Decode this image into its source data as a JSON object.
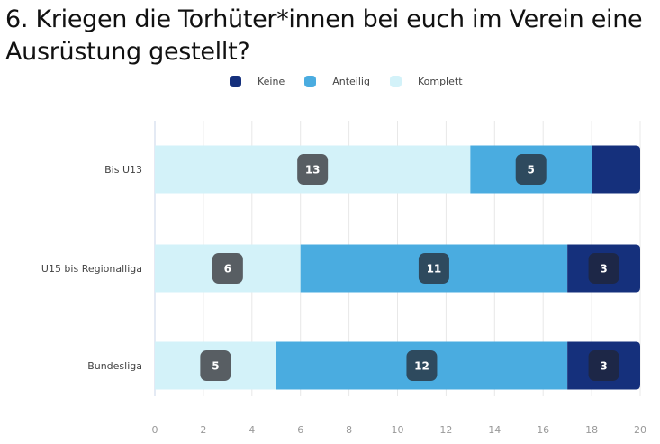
{
  "chart_data": {
    "type": "bar",
    "orientation": "horizontal",
    "stacked": true,
    "title": "6. Kriegen die Torhüter*innen bei euch im Verein eine Ausrüstung gestellt?",
    "xlabel": "",
    "ylabel": "",
    "xlim": [
      0,
      20
    ],
    "xticks": [
      "0",
      "2",
      "4",
      "6",
      "8",
      "10",
      "12",
      "14",
      "16",
      "18",
      "20"
    ],
    "grid": true,
    "legend_position": "top-center",
    "categories": [
      "Bis U13",
      "U15 bis Regionalliga",
      "Bundesliga"
    ],
    "series": [
      {
        "name": "Komplett",
        "color": "#d3f2f9",
        "label_bg": "#585e63",
        "values": [
          13,
          6,
          5
        ],
        "labels": [
          "13",
          "6",
          "5"
        ]
      },
      {
        "name": "Anteilig",
        "color": "#4aace0",
        "label_bg": "#2e4a5e",
        "values": [
          5,
          11,
          12
        ],
        "labels": [
          "5",
          "11",
          "12"
        ]
      },
      {
        "name": "Keine",
        "color": "#15307c",
        "label_bg": "#1d2747",
        "values": [
          2,
          3,
          3
        ],
        "labels": [
          "",
          "3",
          "3"
        ]
      }
    ],
    "legend_order": [
      "Keine",
      "Anteilig",
      "Komplett"
    ]
  }
}
